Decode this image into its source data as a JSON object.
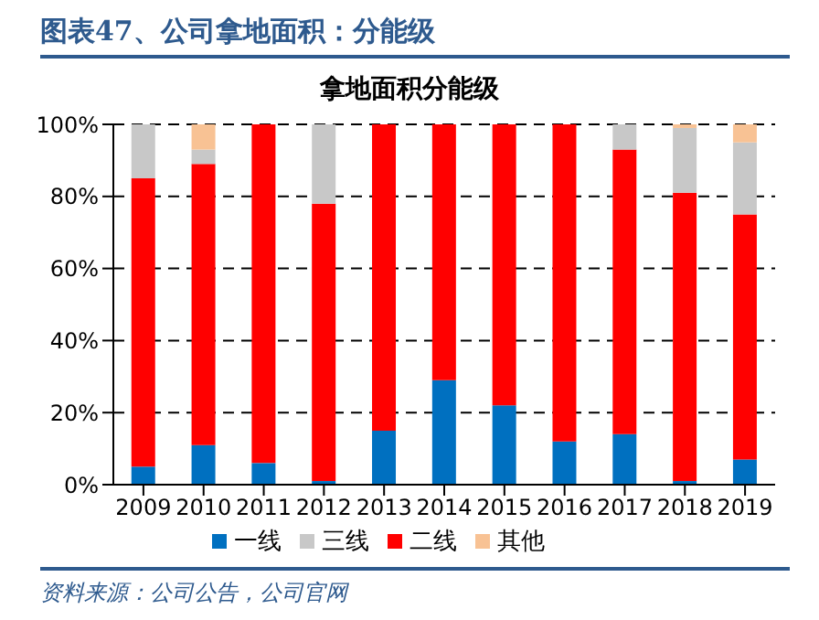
{
  "chart_data": {
    "type": "bar",
    "title": "图表47、公司拿地面积：分能级",
    "subtitle": "拿地面积分能级",
    "categories": [
      "2009",
      "2010",
      "2011",
      "2012",
      "2013",
      "2014",
      "2015",
      "2016",
      "2017",
      "2018",
      "2019"
    ],
    "series": [
      {
        "name": "一线",
        "color": "#0070c0",
        "values": [
          5,
          11,
          6,
          1,
          15,
          29,
          22,
          12,
          14,
          1,
          7
        ]
      },
      {
        "name": "二线",
        "color": "#ff0000",
        "values": [
          80,
          78,
          94,
          77,
          85,
          71,
          78,
          88,
          79,
          80,
          68
        ]
      },
      {
        "name": "三线",
        "color": "#c8c8c8",
        "values": [
          15,
          4,
          0,
          22,
          0,
          0,
          0,
          0,
          7,
          18,
          20
        ]
      },
      {
        "name": "其他",
        "color": "#f8c294",
        "values": [
          0,
          7,
          0,
          0,
          0,
          0,
          0,
          0,
          0,
          1,
          5
        ]
      }
    ],
    "stacked": true,
    "ylim": [
      0,
      100
    ],
    "yticks": [
      {
        "value": 0,
        "label": "0%"
      },
      {
        "value": 20,
        "label": "20%"
      },
      {
        "value": 40,
        "label": "40%"
      },
      {
        "value": 60,
        "label": "60%"
      },
      {
        "value": 80,
        "label": "80%"
      },
      {
        "value": 100,
        "label": "100%"
      }
    ],
    "grid": "y",
    "legend": "bottom",
    "annotations": [
      "资料来源：公司公告，公司官网"
    ]
  }
}
